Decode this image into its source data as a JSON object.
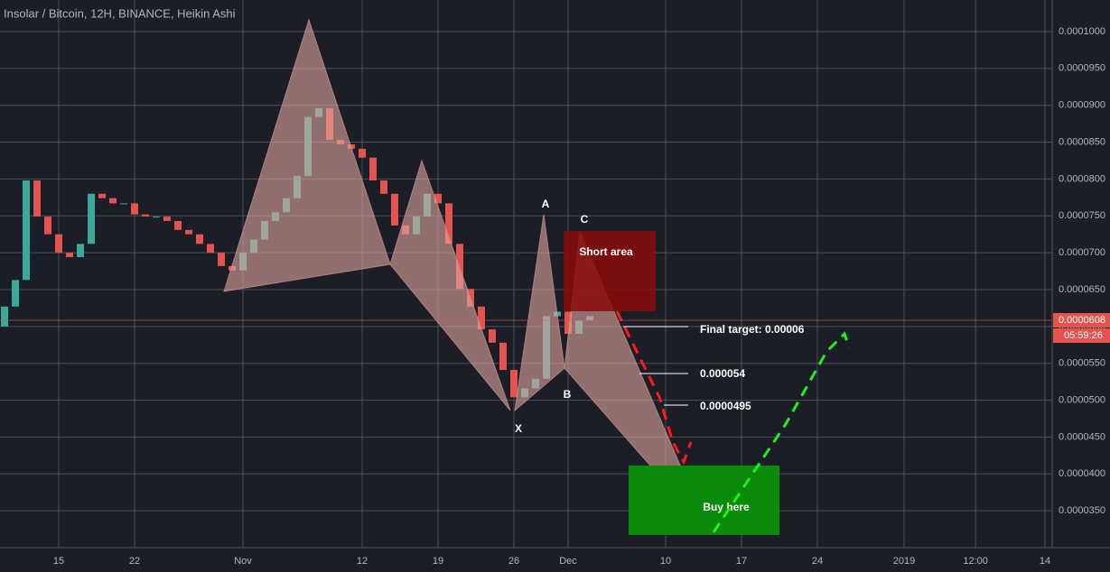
{
  "chart_data": {
    "type": "candlestick",
    "title": "Insolar / Bitcoin, 12H, BINANCE, Heikin Ashi",
    "x": [
      -5,
      -4,
      -3,
      -2,
      -1,
      0,
      1,
      2,
      3,
      4,
      5,
      6,
      7,
      8,
      9,
      10,
      11,
      12,
      13,
      14,
      15,
      16,
      17,
      18,
      19,
      20,
      21,
      22,
      23,
      24,
      25,
      26,
      27,
      28,
      29,
      30,
      31,
      32,
      33,
      34,
      35,
      36,
      37,
      38,
      39,
      40,
      41,
      42,
      43,
      44,
      45,
      46,
      47,
      48,
      49
    ],
    "open": [
      6e-05,
      6.27e-05,
      6.63e-05,
      7.98e-05,
      7.49e-05,
      7.25e-05,
      7e-05,
      6.94e-05,
      7.12e-05,
      7.8e-05,
      7.74e-05,
      7.67e-05,
      7.67e-05,
      7.52e-05,
      7.49e-05,
      7.49e-05,
      7.43e-05,
      7.31e-05,
      7.25e-05,
      7.12e-05,
      7e-05,
      6.82e-05,
      6.76e-05,
      7e-05,
      7.18e-05,
      7.43e-05,
      7.55e-05,
      7.74e-05,
      8.04e-05,
      8.84e-05,
      8.96e-05,
      8.53e-05,
      8.47e-05,
      8.41e-05,
      8.29e-05,
      7.98e-05,
      7.8e-05,
      7.37e-05,
      7.25e-05,
      7.49e-05,
      7.8e-05,
      7.67e-05,
      7.12e-05,
      6.51e-05,
      6.27e-05,
      5.96e-05,
      5.78e-05,
      5.41e-05,
      5.04e-05,
      5.16e-05,
      5.29e-05,
      6.14e-05,
      6.2e-05,
      5.9e-05,
      6.08e-05
    ],
    "close": [
      6.27e-05,
      6.63e-05,
      7.98e-05,
      7.49e-05,
      7.25e-05,
      7e-05,
      6.94e-05,
      7.12e-05,
      7.8e-05,
      7.74e-05,
      7.67e-05,
      7.67e-05,
      7.52e-05,
      7.49e-05,
      7.49e-05,
      7.43e-05,
      7.31e-05,
      7.25e-05,
      7.12e-05,
      7e-05,
      6.82e-05,
      6.76e-05,
      7e-05,
      7.18e-05,
      7.43e-05,
      7.55e-05,
      7.74e-05,
      8.04e-05,
      8.84e-05,
      8.96e-05,
      8.53e-05,
      8.47e-05,
      8.41e-05,
      8.29e-05,
      7.98e-05,
      7.8e-05,
      7.37e-05,
      7.25e-05,
      7.49e-05,
      7.8e-05,
      7.67e-05,
      7.12e-05,
      6.51e-05,
      6.27e-05,
      5.96e-05,
      5.78e-05,
      5.41e-05,
      5.04e-05,
      5.16e-05,
      5.29e-05,
      6.14e-05,
      6.2e-05,
      5.9e-05,
      6.08e-05,
      6.14e-05
    ],
    "up_color": "#3aa99a",
    "down_color": "#e5534f",
    "xlim": [
      -5.42,
      91.67
    ],
    "xticks": [
      {
        "value": 0,
        "label": "15"
      },
      {
        "value": 7,
        "label": "22"
      },
      {
        "value": 17,
        "label": "Nov"
      },
      {
        "value": 28,
        "label": "12"
      },
      {
        "value": 35,
        "label": "19"
      },
      {
        "value": 42,
        "label": "26"
      },
      {
        "value": 47,
        "label": "Dec"
      },
      {
        "value": 56,
        "label": "10"
      },
      {
        "value": 63,
        "label": "17"
      },
      {
        "value": 70,
        "label": "24"
      },
      {
        "value": 78,
        "label": "2019"
      },
      {
        "value": 84.6,
        "label": "12:00"
      },
      {
        "value": 91,
        "label": "14"
      }
    ],
    "ylim": [
      3e-05,
      0.00010428
    ],
    "yticks": [
      {
        "value": 3.5e-05,
        "label": "0.0000350"
      },
      {
        "value": 4e-05,
        "label": "0.0000400"
      },
      {
        "value": 4.5e-05,
        "label": "0.0000450"
      },
      {
        "value": 5e-05,
        "label": "0.0000500"
      },
      {
        "value": 5.5e-05,
        "label": "0.0000550"
      },
      {
        "value": 6e-05,
        "label": "0.0000600"
      },
      {
        "value": 6.5e-05,
        "label": "0.0000650"
      },
      {
        "value": 7e-05,
        "label": "0.0000700"
      },
      {
        "value": 7.5e-05,
        "label": "0.0000750"
      },
      {
        "value": 8e-05,
        "label": "0.0000800"
      },
      {
        "value": 8.5e-05,
        "label": "0.0000850"
      },
      {
        "value": 9e-05,
        "label": "0.0000900"
      },
      {
        "value": 9.5e-05,
        "label": "0.0000950"
      },
      {
        "value": 0.0001,
        "label": "0.0001000"
      }
    ],
    "grid": true,
    "annotations": {
      "points": [
        "X",
        "A",
        "B",
        "C"
      ],
      "short_area": "Short area",
      "buy_area": "Buy here",
      "targets": [
        "Final target: 0.00006",
        "0.000054",
        "0.0000495"
      ],
      "last_price": "0.0000608",
      "countdown": "05:59:26"
    }
  }
}
